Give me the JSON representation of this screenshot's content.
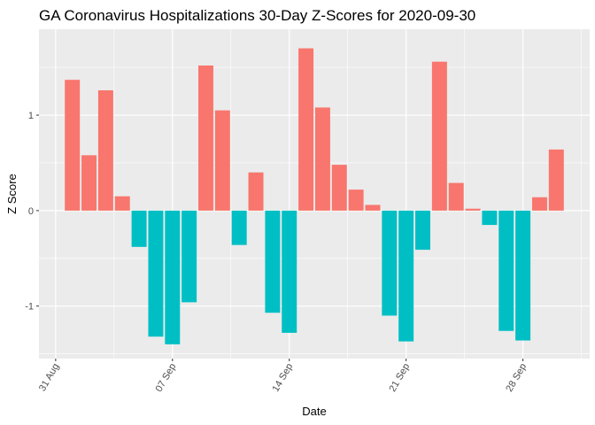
{
  "chart_data": {
    "type": "bar",
    "title": "GA Coronavirus Hospitalizations 30-Day Z-Scores for 2020-09-30",
    "xlabel": "Date",
    "ylabel": "Z Score",
    "x_tick_labels": [
      "31 Aug",
      "07 Sep",
      "14 Sep",
      "21 Sep",
      "28 Sep"
    ],
    "y_tick_labels": [
      "-1",
      "0",
      "1"
    ],
    "ylim": [
      -1.55,
      1.9
    ],
    "grid": true,
    "legend": "none",
    "colors": {
      "positive": "#F8766D",
      "negative": "#00BFC4",
      "panel": "#EBEBEB",
      "grid": "#FFFFFF"
    },
    "x": [
      "2020-09-01",
      "2020-09-02",
      "2020-09-03",
      "2020-09-04",
      "2020-09-05",
      "2020-09-06",
      "2020-09-07",
      "2020-09-08",
      "2020-09-09",
      "2020-09-10",
      "2020-09-11",
      "2020-09-12",
      "2020-09-13",
      "2020-09-14",
      "2020-09-15",
      "2020-09-16",
      "2020-09-17",
      "2020-09-18",
      "2020-09-19",
      "2020-09-20",
      "2020-09-21",
      "2020-09-22",
      "2020-09-23",
      "2020-09-24",
      "2020-09-25",
      "2020-09-26",
      "2020-09-27",
      "2020-09-28",
      "2020-09-29",
      "2020-09-30"
    ],
    "values": [
      1.37,
      0.58,
      1.26,
      0.15,
      -0.38,
      -1.32,
      -1.4,
      -0.96,
      1.52,
      1.05,
      -0.36,
      0.4,
      -1.07,
      -1.28,
      1.7,
      1.08,
      0.48,
      0.22,
      0.06,
      -1.1,
      -1.37,
      -0.41,
      1.56,
      0.29,
      0.02,
      -0.15,
      -1.26,
      -1.36,
      0.14,
      0.64
    ]
  }
}
